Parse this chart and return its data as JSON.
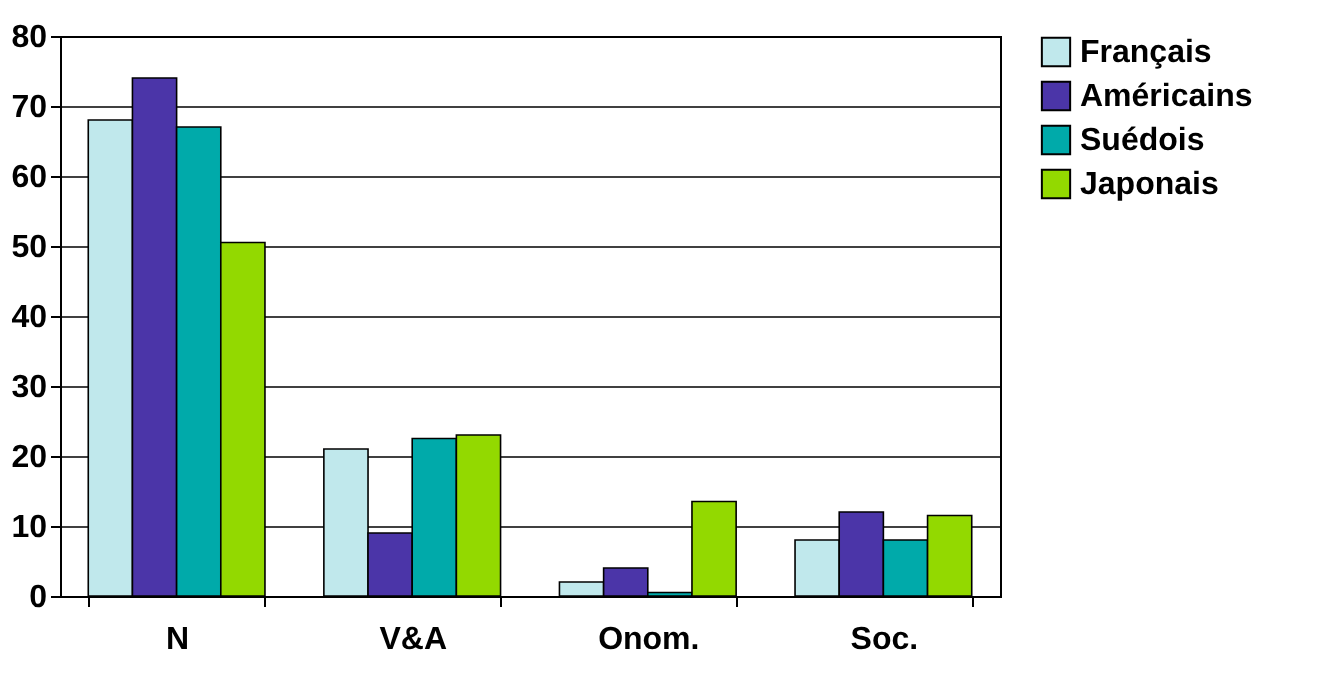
{
  "chart_data": {
    "type": "bar",
    "categories": [
      "N",
      "V&A",
      "Onom.",
      "Soc."
    ],
    "series": [
      {
        "name": "Français",
        "color": "#c0e8ec",
        "values": [
          68,
          21,
          2,
          8
        ]
      },
      {
        "name": "Américains",
        "color": "#4b35a8",
        "values": [
          74,
          9,
          4,
          12
        ]
      },
      {
        "name": "Suédois",
        "color": "#00aaaa",
        "values": [
          67,
          22.5,
          0.5,
          8
        ]
      },
      {
        "name": "Japonais",
        "color": "#93d900",
        "values": [
          50.5,
          23,
          13.5,
          11.5
        ]
      }
    ],
    "ylim": [
      0,
      80
    ],
    "yticks": [
      0,
      10,
      20,
      30,
      40,
      50,
      60,
      70,
      80
    ],
    "grid": "y",
    "legend": "right"
  }
}
